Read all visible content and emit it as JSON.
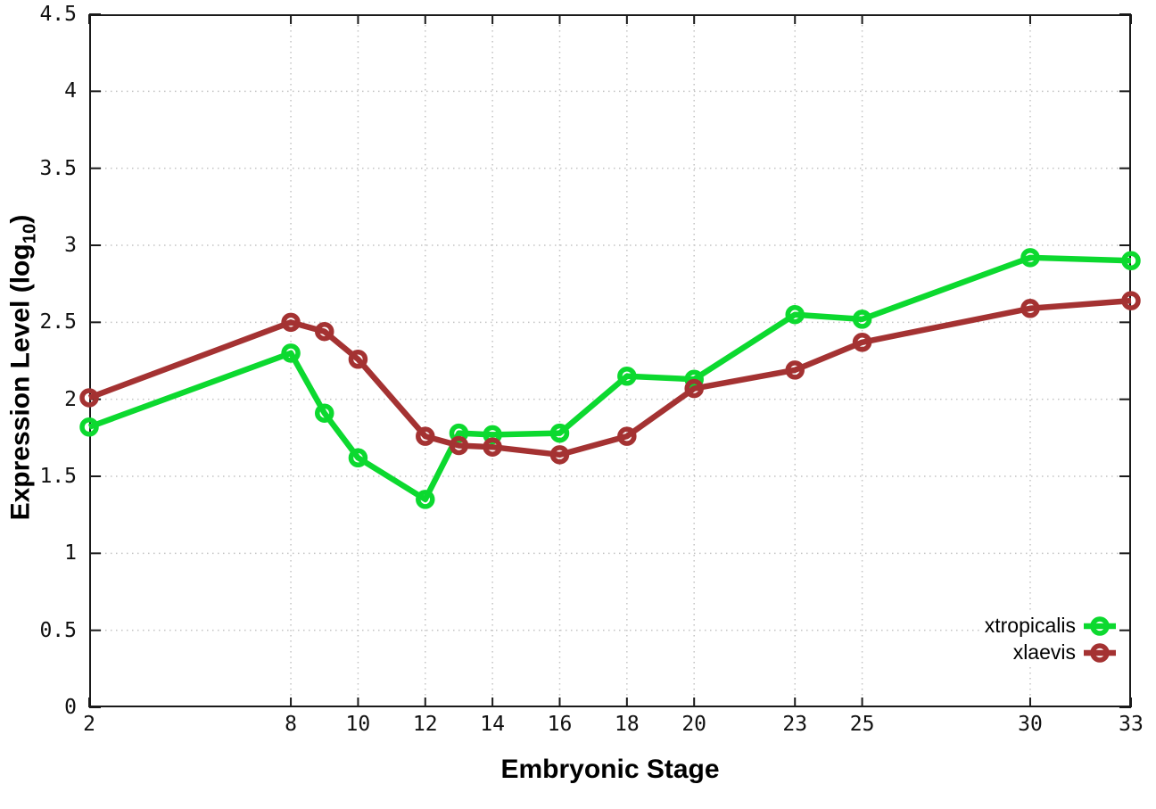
{
  "figure": {
    "background": "#ffffff"
  },
  "chart_data": {
    "type": "line",
    "title": "",
    "xlabel": "Embryonic Stage",
    "ylabel": "Expression Level (log10)",
    "ylabel_parts": {
      "prefix": "Expression Level (log",
      "sub": "10",
      "suffix": ")"
    },
    "xlim": [
      2,
      33
    ],
    "ylim": [
      0,
      4.5
    ],
    "grid": true,
    "grid_style": "dotted",
    "legend_position": "inside-bottom-right",
    "x": [
      2,
      8,
      9,
      10,
      12,
      13,
      14,
      16,
      18,
      20,
      23,
      25,
      30,
      33
    ],
    "xticks": {
      "values": [
        2,
        8,
        10,
        12,
        14,
        16,
        18,
        20,
        23,
        25,
        30,
        33
      ],
      "labels": [
        "2",
        "8",
        "10",
        "12",
        "14",
        "16",
        "18",
        "20",
        "23",
        "25",
        "30",
        "33"
      ]
    },
    "yticks": {
      "values": [
        0,
        0.5,
        1,
        1.5,
        2,
        2.5,
        3,
        3.5,
        4,
        4.5
      ],
      "labels": [
        "0",
        "0.5",
        "1",
        "1.5",
        "2",
        "2.5",
        "3",
        "3.5",
        "4",
        "4.5"
      ]
    },
    "series": [
      {
        "name": "xtropicalis",
        "color": "#0cd92f",
        "marker": "open-circle",
        "values": [
          1.82,
          2.3,
          1.91,
          1.62,
          1.35,
          1.78,
          1.77,
          1.78,
          2.15,
          2.13,
          2.55,
          2.52,
          2.92,
          2.9
        ]
      },
      {
        "name": "xlaevis",
        "color": "#a43232",
        "marker": "open-circle",
        "values": [
          2.01,
          2.5,
          2.44,
          2.26,
          1.76,
          1.7,
          1.69,
          1.64,
          1.76,
          2.07,
          2.19,
          2.37,
          2.59,
          2.64
        ]
      }
    ],
    "colors": {
      "axis": "#1a1a1a",
      "grid": "#c3c3c3",
      "tick_text": "#111111"
    }
  }
}
